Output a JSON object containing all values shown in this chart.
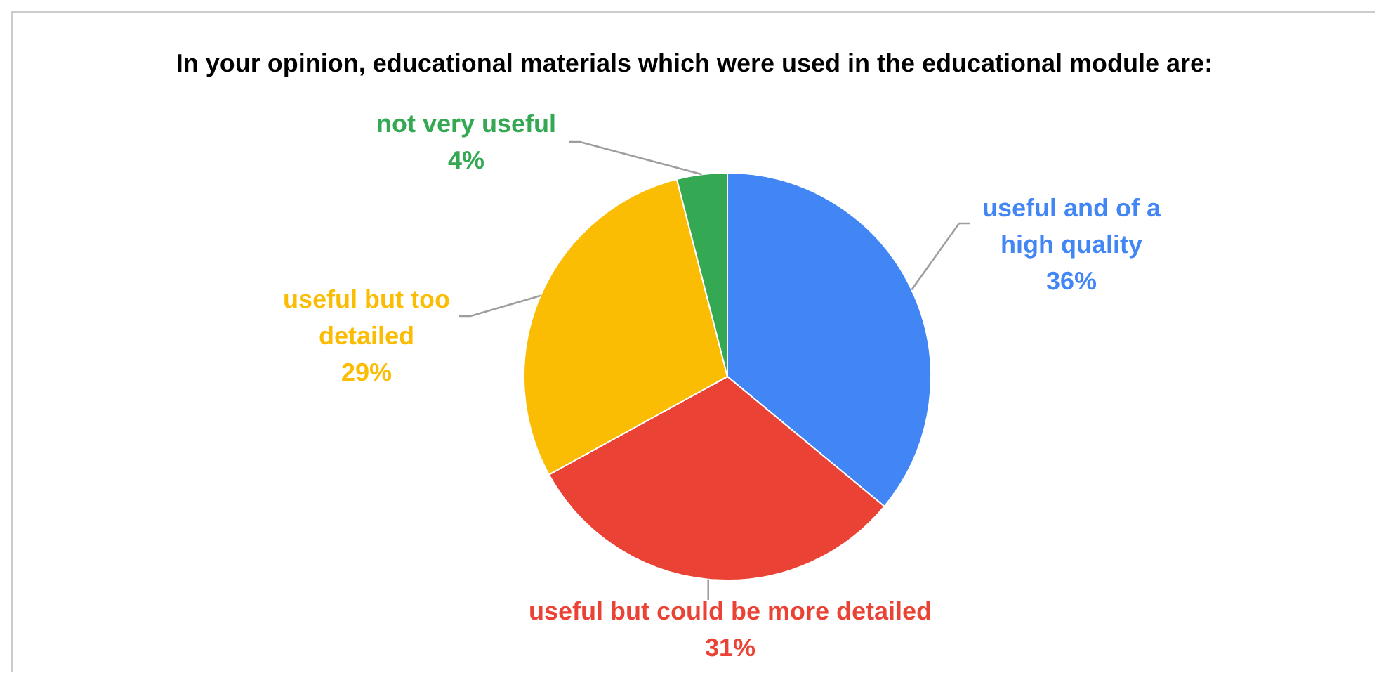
{
  "chart_data": {
    "type": "pie",
    "title": "In your opinion, educational materials which were used in the educational module are:",
    "categories": [
      "useful and of a high quality",
      "useful but could be more detailed",
      "useful but too detailed",
      "not very useful"
    ],
    "values": [
      36,
      31,
      29,
      4
    ],
    "value_labels": [
      "36%",
      "31%",
      "29%",
      "4%"
    ],
    "colors": [
      "#4285f4",
      "#ea4335",
      "#fbbc04",
      "#34a853"
    ]
  }
}
